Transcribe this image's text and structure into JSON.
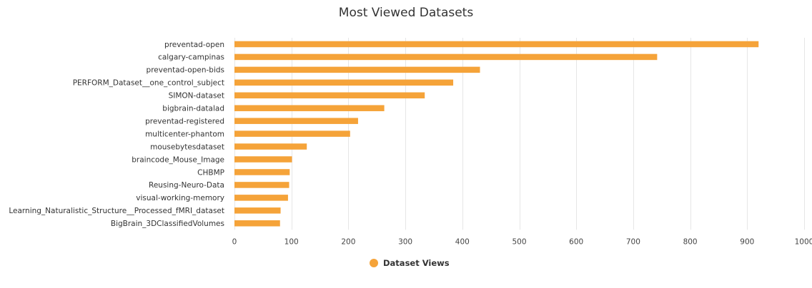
{
  "chart_data": {
    "type": "bar",
    "orientation": "horizontal",
    "title": "Most Viewed Datasets",
    "xlabel": "",
    "ylabel": "",
    "xlim": [
      0,
      1000
    ],
    "x_ticks": [
      0,
      100,
      200,
      300,
      400,
      500,
      600,
      700,
      800,
      900,
      1000
    ],
    "grid": true,
    "legend_position": "bottom-center",
    "bar_color": "#f5a339",
    "categories": [
      "preventad-open",
      "calgary-campinas",
      "preventad-open-bids",
      "PERFORM_Dataset__one_control_subject",
      "SIMON-dataset",
      "bigbrain-datalad",
      "preventad-registered",
      "multicenter-phantom",
      "mousebytesdataset",
      "braincode_Mouse_Image",
      "CHBMP",
      "Reusing-Neuro-Data",
      "visual-working-memory",
      "Learning_Naturalistic_Structure__Processed_fMRI_dataset",
      "BigBrain_3DClassifiedVolumes"
    ],
    "series": [
      {
        "name": "Dataset Views",
        "values": [
          920,
          742,
          431,
          384,
          334,
          263,
          217,
          203,
          127,
          101,
          97,
          96,
          94,
          81,
          80
        ]
      }
    ]
  }
}
